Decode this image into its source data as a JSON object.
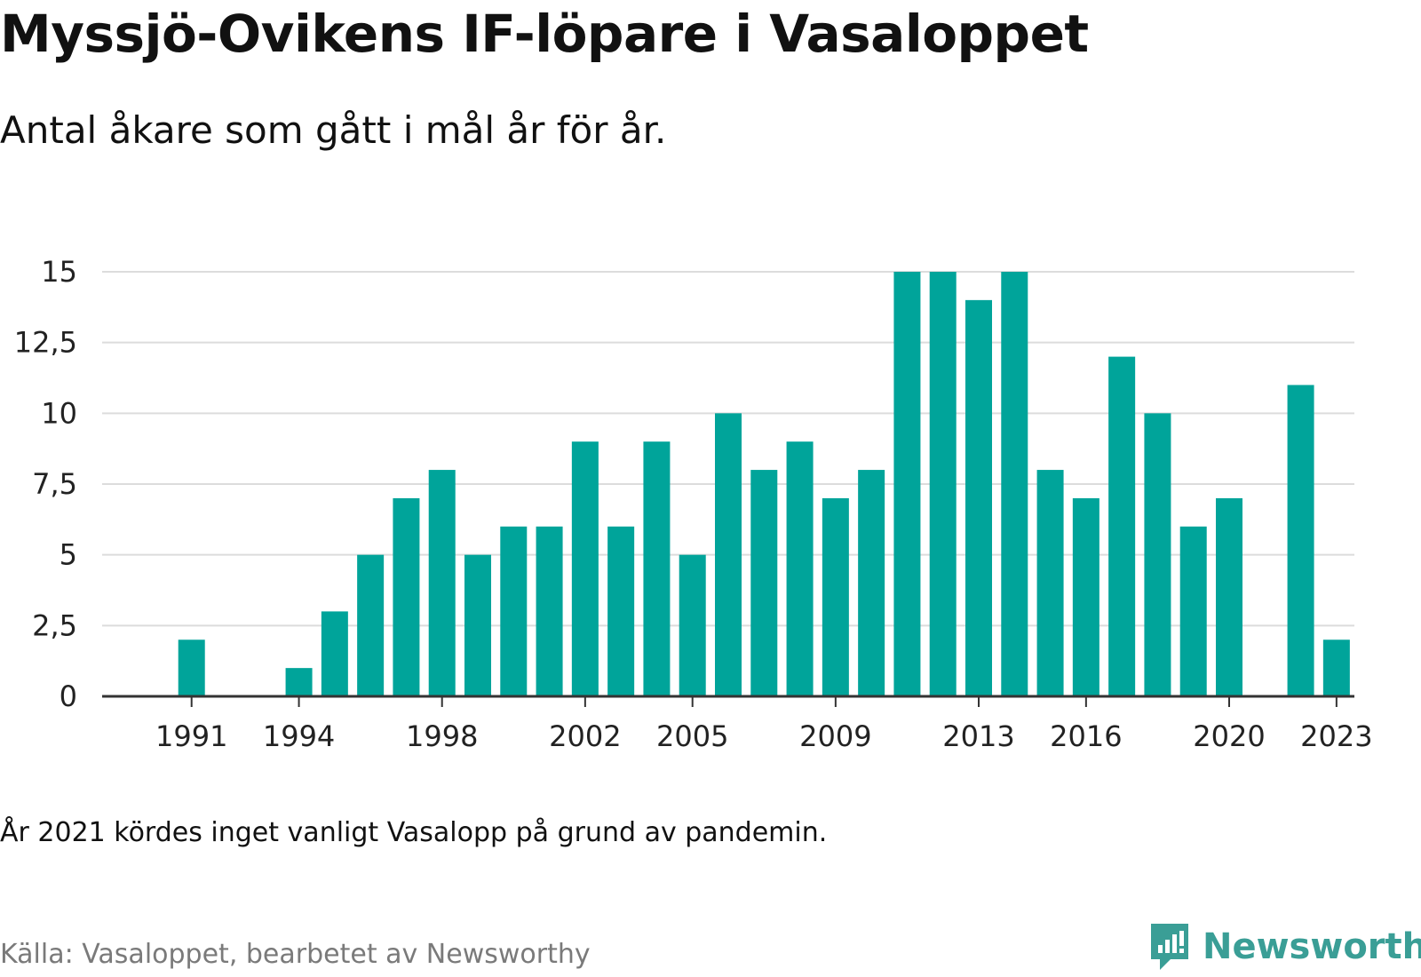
{
  "title": "Myssjö-Ovikens IF-löpare i Vasaloppet",
  "subtitle": "Antal åkare som gått i mål år för år.",
  "note": "År 2021 kördes inget vanligt Vasalopp på grund av pandemin.",
  "source": "Källa: Vasaloppet, bearbetet av Newsworthy",
  "brand": {
    "name": "Newsworthy",
    "icon": "newsworthy-logo-icon",
    "color": "#3a9e96"
  },
  "chart_data": {
    "type": "bar",
    "color": "#00a49a",
    "grid": true,
    "ylim": [
      0,
      15
    ],
    "yticks": [
      0,
      2.5,
      5,
      7.5,
      10,
      12.5,
      15
    ],
    "ytick_labels": [
      "0",
      "2,5",
      "5",
      "7,5",
      "10",
      "12,5",
      "15"
    ],
    "xtick_labels": [
      "1991",
      "1994",
      "1998",
      "2002",
      "2005",
      "2009",
      "2013",
      "2016",
      "2020",
      "2023"
    ],
    "categories": [
      1989,
      1990,
      1991,
      1992,
      1993,
      1994,
      1995,
      1996,
      1997,
      1998,
      1999,
      2000,
      2001,
      2002,
      2003,
      2004,
      2005,
      2006,
      2007,
      2008,
      2009,
      2010,
      2011,
      2012,
      2013,
      2014,
      2015,
      2016,
      2017,
      2018,
      2019,
      2020,
      2021,
      2022,
      2023
    ],
    "values": [
      0,
      0,
      2,
      0,
      0,
      1,
      3,
      5,
      7,
      8,
      5,
      6,
      6,
      9,
      6,
      9,
      5,
      10,
      8,
      9,
      7,
      8,
      15,
      15,
      14,
      15,
      8,
      7,
      12,
      10,
      6,
      7,
      0,
      11,
      2
    ],
    "xlabel": "",
    "ylabel": ""
  }
}
